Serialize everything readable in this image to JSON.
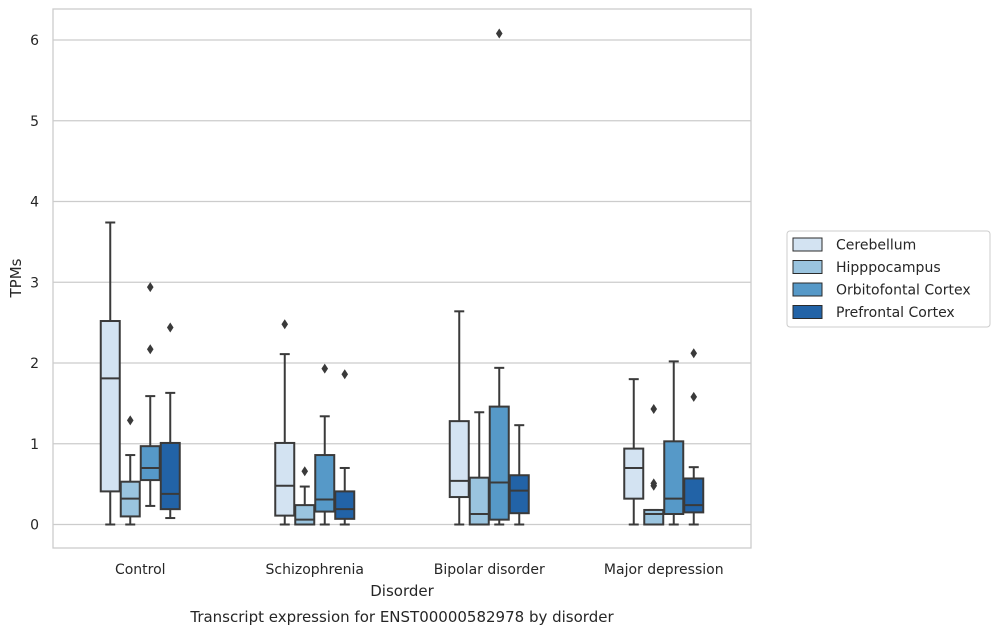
{
  "chart_data": {
    "type": "boxplot",
    "title": "",
    "caption": "Transcript expression for ENST00000582978 by disorder",
    "xlabel": "Disorder",
    "ylabel": "TPMs",
    "ylim": [
      -0.3,
      6.38
    ],
    "yticks": [
      0,
      1,
      2,
      3,
      4,
      5,
      6
    ],
    "grid": "horizontal",
    "legend_position": "right-outside",
    "categories": [
      "Control",
      "Schizophrenia",
      "Bipolar disorder",
      "Major depression"
    ],
    "series": [
      {
        "name": "Cerebellum",
        "color": "#d3e3f2",
        "boxes": [
          {
            "whisker_low": 0.0,
            "q1": 0.41,
            "median": 1.81,
            "q3": 2.52,
            "whisker_high": 3.74,
            "outliers": []
          },
          {
            "whisker_low": 0.0,
            "q1": 0.11,
            "median": 0.48,
            "q3": 1.01,
            "whisker_high": 2.11,
            "outliers": [
              2.48
            ]
          },
          {
            "whisker_low": 0.0,
            "q1": 0.34,
            "median": 0.54,
            "q3": 1.28,
            "whisker_high": 2.64,
            "outliers": []
          },
          {
            "whisker_low": 0.0,
            "q1": 0.32,
            "median": 0.7,
            "q3": 0.94,
            "whisker_high": 1.8,
            "outliers": []
          }
        ]
      },
      {
        "name": "Hipppocampus",
        "color": "#9ac4df",
        "boxes": [
          {
            "whisker_low": 0.0,
            "q1": 0.1,
            "median": 0.32,
            "q3": 0.53,
            "whisker_high": 0.86,
            "outliers": [
              1.29
            ]
          },
          {
            "whisker_low": 0.0,
            "q1": 0.0,
            "median": 0.06,
            "q3": 0.24,
            "whisker_high": 0.47,
            "outliers": [
              0.66
            ]
          },
          {
            "whisker_low": 0.0,
            "q1": 0.0,
            "median": 0.13,
            "q3": 0.58,
            "whisker_high": 1.39,
            "outliers": []
          },
          {
            "whisker_low": 0.0,
            "q1": 0.0,
            "median": 0.13,
            "q3": 0.18,
            "whisker_high": 0.18,
            "outliers": [
              0.48,
              0.51,
              1.43
            ]
          }
        ]
      },
      {
        "name": "Orbitofontal Cortex",
        "color": "#5699c8",
        "boxes": [
          {
            "whisker_low": 0.23,
            "q1": 0.55,
            "median": 0.7,
            "q3": 0.97,
            "whisker_high": 1.59,
            "outliers": [
              2.17,
              2.94
            ]
          },
          {
            "whisker_low": 0.0,
            "q1": 0.16,
            "median": 0.31,
            "q3": 0.86,
            "whisker_high": 1.34,
            "outliers": [
              1.93
            ]
          },
          {
            "whisker_low": 0.0,
            "q1": 0.06,
            "median": 0.52,
            "q3": 1.46,
            "whisker_high": 1.94,
            "outliers": [
              6.08
            ]
          },
          {
            "whisker_low": 0.0,
            "q1": 0.13,
            "median": 0.32,
            "q3": 1.03,
            "whisker_high": 2.02,
            "outliers": []
          }
        ]
      },
      {
        "name": "Prefrontal Cortex",
        "color": "#2263a7",
        "boxes": [
          {
            "whisker_low": 0.08,
            "q1": 0.19,
            "median": 0.38,
            "q3": 1.01,
            "whisker_high": 1.63,
            "outliers": [
              2.44
            ]
          },
          {
            "whisker_low": 0.0,
            "q1": 0.07,
            "median": 0.19,
            "q3": 0.41,
            "whisker_high": 0.7,
            "outliers": [
              1.86
            ]
          },
          {
            "whisker_low": 0.0,
            "q1": 0.14,
            "median": 0.42,
            "q3": 0.61,
            "whisker_high": 1.23,
            "outliers": []
          },
          {
            "whisker_low": 0.0,
            "q1": 0.15,
            "median": 0.24,
            "q3": 0.57,
            "whisker_high": 0.71,
            "outliers": [
              1.58,
              2.12
            ]
          }
        ]
      }
    ]
  }
}
